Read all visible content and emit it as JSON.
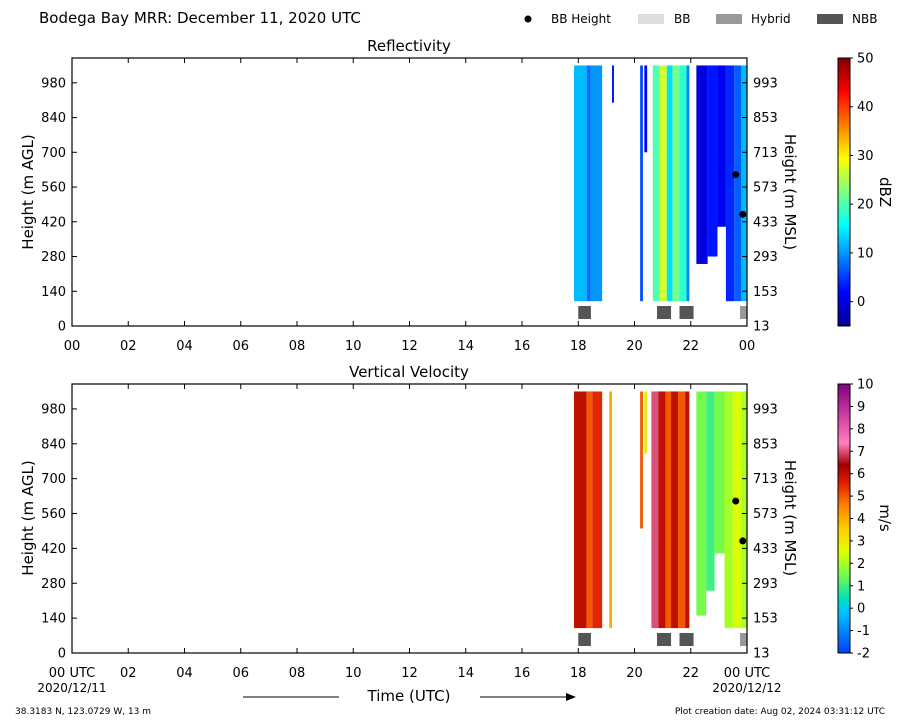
{
  "figure": {
    "title": "Bodega Bay MRR:  December 11, 2020 UTC",
    "footer_left": "38.3183 N, 123.0729 W, 13 m",
    "footer_right": "Plot creation date: Aug 02, 2024 03:31:12 UTC",
    "xlabel": "Time (UTC)",
    "start_date": "2020/12/11",
    "end_date": "2020/12/12"
  },
  "legend": [
    {
      "label": "BB Height",
      "kind": "dot",
      "color": "#000000"
    },
    {
      "label": "BB",
      "kind": "box",
      "color": "#dddddd"
    },
    {
      "label": "Hybrid",
      "kind": "box",
      "color": "#999999"
    },
    {
      "label": "NBB",
      "kind": "box",
      "color": "#555555"
    }
  ],
  "chart_data": [
    {
      "type": "heatmap",
      "title": "Reflectivity",
      "ylabel_left": "Height (m AGL)",
      "ylabel_right": "Height (m MSL)",
      "xlim_hours": [
        0,
        24
      ],
      "ylim_m_agl": [
        0,
        1080
      ],
      "x_ticks": [
        "00",
        "02",
        "04",
        "06",
        "08",
        "10",
        "12",
        "14",
        "16",
        "18",
        "20",
        "22",
        "00"
      ],
      "y_ticks_left": [
        0,
        140,
        280,
        420,
        560,
        700,
        840,
        980
      ],
      "y_ticks_right": [
        13,
        153,
        293,
        433,
        573,
        713,
        853,
        993
      ],
      "colorbar": {
        "label": "dBZ",
        "min": -5,
        "max": 50,
        "ticks": [
          0,
          10,
          20,
          30,
          40,
          50
        ],
        "colormap": "jet"
      },
      "columns": [
        {
          "t0": 17.85,
          "t1": 18.3,
          "bottom": 100,
          "top": 1050,
          "value": 12
        },
        {
          "t0": 18.3,
          "t1": 18.45,
          "bottom": 100,
          "top": 1050,
          "value": 8
        },
        {
          "t0": 18.45,
          "t1": 18.85,
          "bottom": 100,
          "top": 1050,
          "value": 10
        },
        {
          "t0": 19.2,
          "t1": 19.27,
          "bottom": 900,
          "top": 1050,
          "value": 3
        },
        {
          "t0": 20.2,
          "t1": 20.3,
          "bottom": 100,
          "top": 1050,
          "value": 6
        },
        {
          "t0": 20.35,
          "t1": 20.45,
          "bottom": 700,
          "top": 1050,
          "value": 2
        },
        {
          "t0": 20.65,
          "t1": 20.9,
          "bottom": 100,
          "top": 1050,
          "value": 20
        },
        {
          "t0": 20.9,
          "t1": 21.15,
          "bottom": 100,
          "top": 1050,
          "value": 27
        },
        {
          "t0": 21.15,
          "t1": 21.35,
          "bottom": 100,
          "top": 1050,
          "value": 14
        },
        {
          "t0": 21.35,
          "t1": 21.6,
          "bottom": 100,
          "top": 1050,
          "value": 22
        },
        {
          "t0": 21.6,
          "t1": 21.85,
          "bottom": 100,
          "top": 1050,
          "value": 18
        },
        {
          "t0": 21.85,
          "t1": 21.95,
          "bottom": 100,
          "top": 1050,
          "value": 9
        },
        {
          "t0": 22.2,
          "t1": 22.6,
          "bottom": 250,
          "top": 1050,
          "value": 0
        },
        {
          "t0": 22.6,
          "t1": 22.95,
          "bottom": 280,
          "top": 1050,
          "value": 3
        },
        {
          "t0": 22.95,
          "t1": 23.25,
          "bottom": 400,
          "top": 1050,
          "value": 1
        },
        {
          "t0": 23.25,
          "t1": 23.55,
          "bottom": 100,
          "top": 1050,
          "value": 4
        },
        {
          "t0": 23.55,
          "t1": 23.8,
          "bottom": 100,
          "top": 1050,
          "value": 7
        },
        {
          "t0": 23.8,
          "t1": 24.0,
          "bottom": 100,
          "top": 1050,
          "value": 12
        }
      ],
      "bb_height_points": [
        {
          "t": 23.6,
          "h": 610
        },
        {
          "t": 23.85,
          "h": 450
        }
      ],
      "bb_type_boxes": [
        {
          "t0": 18.0,
          "t1": 18.45,
          "type": "NBB"
        },
        {
          "t0": 20.8,
          "t1": 21.3,
          "type": "NBB"
        },
        {
          "t0": 21.6,
          "t1": 22.1,
          "type": "NBB"
        },
        {
          "t0": 23.75,
          "t1": 24.0,
          "type": "Hybrid"
        }
      ]
    },
    {
      "type": "heatmap",
      "title": "Vertical Velocity",
      "ylabel_left": "Height (m AGL)",
      "ylabel_right": "Height (m MSL)",
      "xlim_hours": [
        0,
        24
      ],
      "ylim_m_agl": [
        0,
        1080
      ],
      "x_ticks": [
        "00 UTC",
        "02",
        "04",
        "06",
        "08",
        "10",
        "12",
        "14",
        "16",
        "18",
        "20",
        "22",
        "00 UTC"
      ],
      "y_ticks_left": [
        0,
        140,
        280,
        420,
        560,
        700,
        840,
        980
      ],
      "y_ticks_right": [
        13,
        153,
        293,
        433,
        573,
        713,
        853,
        993
      ],
      "colorbar": {
        "label": "m/s",
        "min": -2,
        "max": 10,
        "ticks": [
          -2,
          -1,
          0,
          1,
          2,
          3,
          4,
          5,
          6,
          7,
          8,
          9,
          10
        ],
        "colormap": "velocity"
      },
      "columns": [
        {
          "t0": 17.85,
          "t1": 18.3,
          "bottom": 100,
          "top": 1050,
          "value": 6
        },
        {
          "t0": 18.3,
          "t1": 18.5,
          "bottom": 100,
          "top": 1050,
          "value": 5
        },
        {
          "t0": 18.5,
          "t1": 18.85,
          "bottom": 100,
          "top": 1050,
          "value": 5.5
        },
        {
          "t0": 19.1,
          "t1": 19.2,
          "bottom": 100,
          "top": 1050,
          "value": 4
        },
        {
          "t0": 20.2,
          "t1": 20.3,
          "bottom": 500,
          "top": 1050,
          "value": 5
        },
        {
          "t0": 20.35,
          "t1": 20.45,
          "bottom": 800,
          "top": 1050,
          "value": 3
        },
        {
          "t0": 20.6,
          "t1": 20.85,
          "bottom": 100,
          "top": 1050,
          "value": 7
        },
        {
          "t0": 20.85,
          "t1": 21.1,
          "bottom": 100,
          "top": 1050,
          "value": 6
        },
        {
          "t0": 21.1,
          "t1": 21.3,
          "bottom": 100,
          "top": 1050,
          "value": 5
        },
        {
          "t0": 21.3,
          "t1": 21.55,
          "bottom": 100,
          "top": 1050,
          "value": 6
        },
        {
          "t0": 21.55,
          "t1": 21.8,
          "bottom": 100,
          "top": 1050,
          "value": 5
        },
        {
          "t0": 21.8,
          "t1": 21.95,
          "bottom": 100,
          "top": 1050,
          "value": 6
        },
        {
          "t0": 22.2,
          "t1": 22.55,
          "bottom": 150,
          "top": 1050,
          "value": 1.5
        },
        {
          "t0": 22.55,
          "t1": 22.85,
          "bottom": 250,
          "top": 1050,
          "value": 1
        },
        {
          "t0": 22.85,
          "t1": 23.2,
          "bottom": 400,
          "top": 1050,
          "value": 1.5
        },
        {
          "t0": 23.2,
          "t1": 23.5,
          "bottom": 100,
          "top": 1050,
          "value": 2
        },
        {
          "t0": 23.5,
          "t1": 23.8,
          "bottom": 100,
          "top": 1050,
          "value": 2.5
        },
        {
          "t0": 23.8,
          "t1": 24.0,
          "bottom": 100,
          "top": 1050,
          "value": 2
        }
      ],
      "bb_height_points": [
        {
          "t": 23.6,
          "h": 610
        },
        {
          "t": 23.85,
          "h": 450
        }
      ],
      "bb_type_boxes": [
        {
          "t0": 18.0,
          "t1": 18.45,
          "type": "NBB"
        },
        {
          "t0": 20.8,
          "t1": 21.3,
          "type": "NBB"
        },
        {
          "t0": 21.6,
          "t1": 22.1,
          "type": "NBB"
        },
        {
          "t0": 23.75,
          "t1": 24.0,
          "type": "Hybrid"
        }
      ]
    }
  ]
}
